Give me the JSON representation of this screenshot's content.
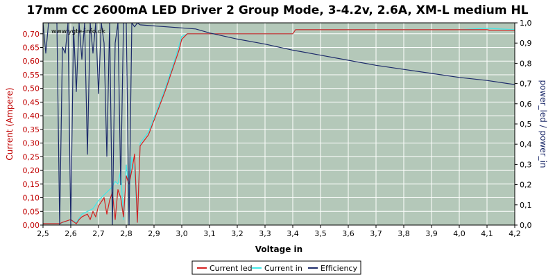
{
  "chart_data": {
    "type": "line",
    "title": "17mm CC 2600mA LED Driver 2 Group Mode, 3-4.2v, 2.6A, XM-L medium HL",
    "watermark": "www.ygte-info.dk",
    "xlabel": "Voltage in",
    "ylabel_left": "Current (Ampere)",
    "ylabel_right": "power_led / power_in",
    "xlim": [
      2.5,
      4.2
    ],
    "ylim_left": [
      0,
      0.74
    ],
    "ylim_right": [
      0,
      1.0
    ],
    "x_ticks": [
      "2,5",
      "2,6",
      "2,7",
      "2,8",
      "2,9",
      "3,0",
      "3,1",
      "3,2",
      "3,3",
      "3,4",
      "3,5",
      "3,6",
      "3,7",
      "3,8",
      "3,9",
      "4,0",
      "4,1",
      "4,2"
    ],
    "x_tick_values": [
      2.5,
      2.6,
      2.7,
      2.8,
      2.9,
      3.0,
      3.1,
      3.2,
      3.3,
      3.4,
      3.5,
      3.6,
      3.7,
      3.8,
      3.9,
      4.0,
      4.1,
      4.2
    ],
    "y_left_ticks": [
      "0,00",
      "0,05",
      "0,10",
      "0,15",
      "0,20",
      "0,25",
      "0,30",
      "0,35",
      "0,40",
      "0,45",
      "0,50",
      "0,55",
      "0,60",
      "0,65",
      "0,70"
    ],
    "y_left_tick_values": [
      0,
      0.05,
      0.1,
      0.15,
      0.2,
      0.25,
      0.3,
      0.35,
      0.4,
      0.45,
      0.5,
      0.55,
      0.6,
      0.65,
      0.7
    ],
    "y_right_ticks": [
      "0,0",
      "0,1",
      "0,2",
      "0,3",
      "0,4",
      "0,5",
      "0,6",
      "0,7",
      "0,8",
      "0,9",
      "1,0"
    ],
    "y_right_tick_values": [
      0,
      0.1,
      0.2,
      0.3,
      0.4,
      0.5,
      0.6,
      0.7,
      0.8,
      0.9,
      1.0
    ],
    "grid": true,
    "legend_position": "bottom",
    "colors": {
      "plot_bg": "#b4c8b9",
      "grid": "#ffffff",
      "current_led": "#d42020",
      "current_in": "#40e8e8",
      "efficiency": "#1c2a6a",
      "left_axis_label": "#c00000",
      "right_axis_label": "#1c2a6a"
    },
    "series": [
      {
        "name": "Current led",
        "axis": "left",
        "x": [
          2.5,
          2.52,
          2.54,
          2.56,
          2.57,
          2.6,
          2.62,
          2.63,
          2.64,
          2.66,
          2.67,
          2.68,
          2.69,
          2.7,
          2.72,
          2.73,
          2.74,
          2.75,
          2.76,
          2.77,
          2.78,
          2.79,
          2.8,
          2.81,
          2.82,
          2.83,
          2.84,
          2.85,
          2.88,
          2.91,
          2.94,
          2.97,
          2.99,
          3.0,
          3.02,
          3.05,
          3.1,
          3.2,
          3.3,
          3.4,
          3.41,
          3.5,
          3.6,
          3.7,
          3.8,
          3.9,
          4.0,
          4.1,
          4.11,
          4.2
        ],
        "y": [
          0.005,
          0.005,
          0.005,
          0.005,
          0.01,
          0.02,
          0.005,
          0.02,
          0.03,
          0.04,
          0.02,
          0.05,
          0.03,
          0.07,
          0.1,
          0.04,
          0.09,
          0.12,
          0.02,
          0.13,
          0.1,
          0.03,
          0.18,
          0.15,
          0.2,
          0.26,
          0.01,
          0.29,
          0.33,
          0.41,
          0.49,
          0.58,
          0.64,
          0.68,
          0.7,
          0.7,
          0.7,
          0.7,
          0.7,
          0.7,
          0.715,
          0.715,
          0.715,
          0.715,
          0.715,
          0.715,
          0.715,
          0.715,
          0.713,
          0.713
        ]
      },
      {
        "name": "Current in",
        "axis": "left",
        "x": [
          2.5,
          2.56,
          2.6,
          2.62,
          2.64,
          2.66,
          2.68,
          2.7,
          2.72,
          2.74,
          2.75,
          2.76,
          2.77,
          2.78,
          2.79,
          2.8,
          2.81,
          2.82,
          2.83,
          2.84,
          2.85,
          2.88,
          2.91,
          2.94,
          2.97,
          3.0,
          3.02,
          3.05,
          3.1,
          3.2,
          3.3,
          3.4,
          3.41,
          3.5,
          3.6,
          3.7,
          3.8,
          3.9,
          4.0,
          4.1,
          4.2
        ],
        "y": [
          0.005,
          0.005,
          0.02,
          0.01,
          0.04,
          0.05,
          0.06,
          0.09,
          0.11,
          0.13,
          0.14,
          0.16,
          0.15,
          0.2,
          0.02,
          0.22,
          0.12,
          0.25,
          0.2,
          0.01,
          0.3,
          0.34,
          0.42,
          0.5,
          0.59,
          0.69,
          0.7,
          0.7,
          0.7,
          0.7,
          0.7,
          0.7,
          0.715,
          0.715,
          0.715,
          0.715,
          0.715,
          0.715,
          0.715,
          0.72,
          0.715
        ]
      },
      {
        "name": "Efficiency",
        "axis": "right",
        "x": [
          2.5,
          2.51,
          2.52,
          2.54,
          2.55,
          2.56,
          2.57,
          2.58,
          2.59,
          2.6,
          2.61,
          2.62,
          2.63,
          2.64,
          2.65,
          2.66,
          2.67,
          2.68,
          2.69,
          2.7,
          2.71,
          2.72,
          2.73,
          2.74,
          2.75,
          2.76,
          2.77,
          2.78,
          2.79,
          2.8,
          2.81,
          2.82,
          2.83,
          2.84,
          2.85,
          2.9,
          3.0,
          3.05,
          3.1,
          3.2,
          3.3,
          3.4,
          3.5,
          3.6,
          3.7,
          3.8,
          3.9,
          4.0,
          4.1,
          4.2
        ],
        "y": [
          1.0,
          0.85,
          1.0,
          1.0,
          1.0,
          0.0,
          0.88,
          0.85,
          1.0,
          0.0,
          0.98,
          0.66,
          1.0,
          0.82,
          1.0,
          0.35,
          1.0,
          0.85,
          1.0,
          0.65,
          1.0,
          0.9,
          0.34,
          1.0,
          0.0,
          0.9,
          1.0,
          0.2,
          1.0,
          1.0,
          0.0,
          1.0,
          0.98,
          1.0,
          0.99,
          0.985,
          0.975,
          0.97,
          0.95,
          0.92,
          0.895,
          0.865,
          0.84,
          0.815,
          0.79,
          0.77,
          0.75,
          0.73,
          0.715,
          0.695
        ]
      }
    ]
  }
}
